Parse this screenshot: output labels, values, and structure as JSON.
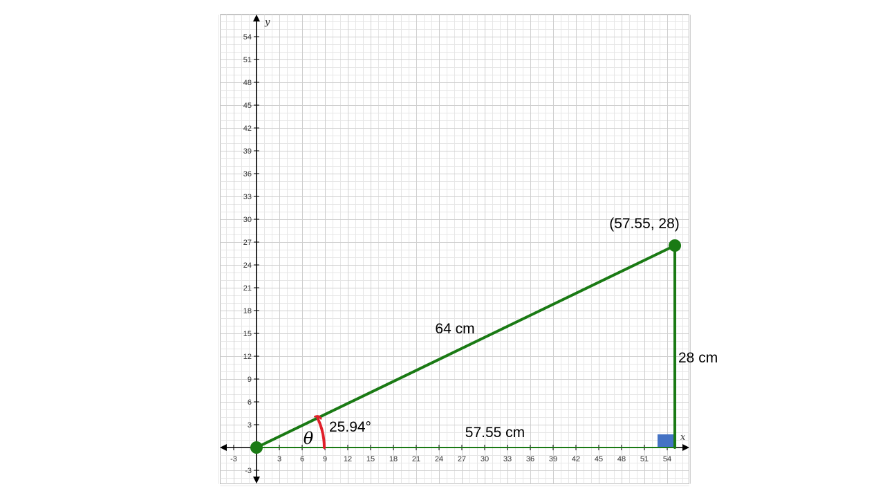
{
  "axes": {
    "x_name": "x",
    "y_name": "y",
    "x_ticks": [
      -3,
      3,
      6,
      9,
      12,
      15,
      18,
      21,
      24,
      27,
      30,
      33,
      36,
      39,
      42,
      45,
      48,
      51,
      54
    ],
    "y_ticks": [
      -3,
      3,
      6,
      9,
      12,
      15,
      18,
      21,
      24,
      27,
      30,
      33,
      36,
      39,
      42,
      45,
      48,
      51,
      54
    ],
    "xlim": [
      -5,
      57.5
    ],
    "ylim": [
      -5,
      57.5
    ],
    "grid": true
  },
  "triangle": {
    "origin": [
      0,
      0
    ],
    "right_angle_vertex": [
      57.55,
      0
    ],
    "top_vertex": [
      57.55,
      28
    ],
    "top_vertex_label": "(57.55, 28)",
    "hypotenuse_label": "64 cm",
    "base_label": "57.55 cm",
    "height_label": "28 cm",
    "angle_symbol": "θ",
    "angle_value_label": "25.94°",
    "line_color": "#1a7a14",
    "point_color": "#1a7a14",
    "arc_color": "#e0202a",
    "right_angle_marker_color": "#4472c4"
  }
}
